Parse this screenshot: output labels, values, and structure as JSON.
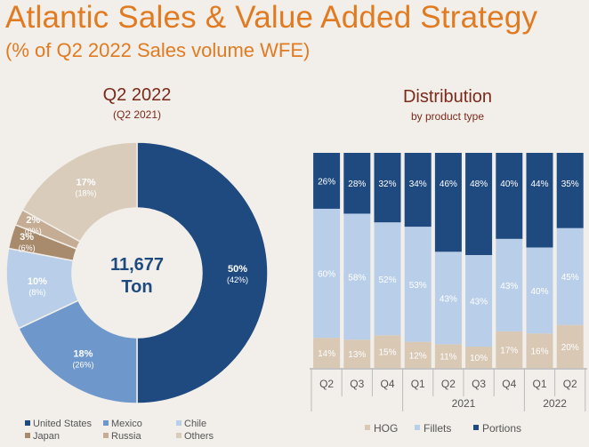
{
  "header": {
    "title": "Atlantic Sales & Value Added Strategy",
    "subtitle": "(% of Q2 2022 Sales volume WFE)"
  },
  "colors": {
    "background": "#f2efea",
    "accent": "#e07b22",
    "heading": "#7a2a1a",
    "navy": "#1f4a80"
  },
  "chart_data": [
    {
      "type": "pie",
      "title": "Q2 2022",
      "subtitle": "(Q2 2021)",
      "center_value": "11,677",
      "center_unit": "Ton",
      "slices": [
        {
          "name": "United States",
          "value": 50,
          "label": "50%",
          "prior_label": "(42%)",
          "color": "#1f4a80"
        },
        {
          "name": "Mexico",
          "value": 18,
          "label": "18%",
          "prior_label": "(26%)",
          "color": "#6e97cc"
        },
        {
          "name": "Chile",
          "value": 10,
          "label": "10%",
          "prior_label": "(8%)",
          "color": "#b9cfe9"
        },
        {
          "name": "Japan",
          "value": 3,
          "label": "3%",
          "prior_label": "(6%)",
          "color": "#a88a6c"
        },
        {
          "name": "Russia",
          "value": 2,
          "label": "2%",
          "prior_label": "(0%)",
          "color": "#c4ad94"
        },
        {
          "name": "Others",
          "value": 17,
          "label": "17%",
          "prior_label": "(18%)",
          "color": "#d9ccbb"
        }
      ],
      "legend": [
        "United States",
        "Mexico",
        "Chile",
        "Japan",
        "Russia",
        "Others"
      ],
      "legend_position": "bottom"
    },
    {
      "type": "bar",
      "stacked": true,
      "title": "Distribution",
      "subtitle": "by product type",
      "categories": [
        "Q2",
        "Q3",
        "Q4",
        "Q1",
        "Q2",
        "Q3",
        "Q4",
        "Q1",
        "Q2"
      ],
      "year_groups": [
        {
          "label": "",
          "count": 3
        },
        {
          "label": "2021",
          "count": 4
        },
        {
          "label": "2022",
          "count": 2
        }
      ],
      "series": [
        {
          "name": "HOG",
          "color": "#d8c8b4",
          "values": [
            14,
            13,
            15,
            12,
            11,
            10,
            17,
            16,
            20
          ],
          "labels": [
            "14%",
            "13%",
            "15%",
            "12%",
            "11%",
            "10%",
            "17%",
            "16%",
            "20%"
          ]
        },
        {
          "name": "Fillets",
          "color": "#b9cfe9",
          "values": [
            60,
            58,
            52,
            53,
            43,
            43,
            43,
            40,
            45
          ],
          "labels": [
            "60%",
            "58%",
            "52%",
            "53%",
            "43%",
            "43%",
            "43%",
            "40%",
            "45%"
          ]
        },
        {
          "name": "Portions",
          "color": "#1f4a80",
          "values": [
            26,
            28,
            32,
            34,
            46,
            48,
            40,
            44,
            35
          ],
          "labels": [
            "26%",
            "28%",
            "32%",
            "34%",
            "46%",
            "48%",
            "40%",
            "44%",
            "35%"
          ]
        }
      ],
      "legend_position": "bottom",
      "ylim": [
        0,
        100
      ]
    }
  ]
}
